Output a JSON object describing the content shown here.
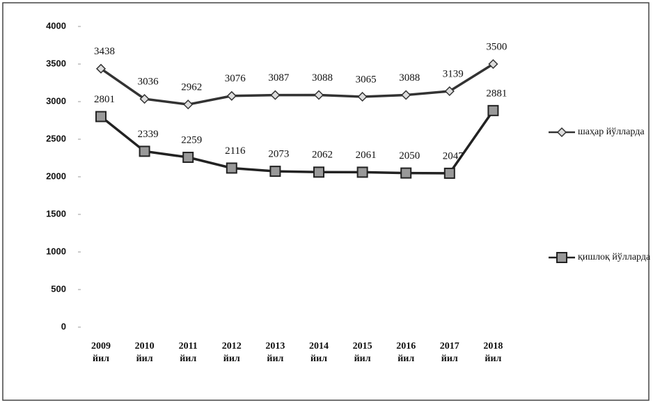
{
  "chart_data": {
    "type": "line",
    "categories": [
      "2009 йил",
      "2010 йил",
      "2011 йил",
      "2012 йил",
      "2013 йил",
      "2014 йил",
      "2015 йил",
      "2016 йил",
      "2017 йил",
      "2018 йил"
    ],
    "series": [
      {
        "name": "шаҳар йўлларда",
        "color": "#333333",
        "marker": "diamond",
        "values": [
          3438,
          3036,
          2962,
          3076,
          3087,
          3088,
          3065,
          3088,
          3139,
          3500
        ]
      },
      {
        "name": "қишлоқ йўлларда",
        "color": "#222222",
        "marker": "square",
        "values": [
          2801,
          2339,
          2259,
          2116,
          2073,
          2062,
          2061,
          2050,
          2047,
          2881
        ]
      }
    ],
    "ylim": [
      0,
      4000
    ],
    "yticks": [
      0,
      500,
      1000,
      1500,
      2000,
      2500,
      3000,
      3500,
      4000
    ],
    "grid": false,
    "legend": "right"
  }
}
